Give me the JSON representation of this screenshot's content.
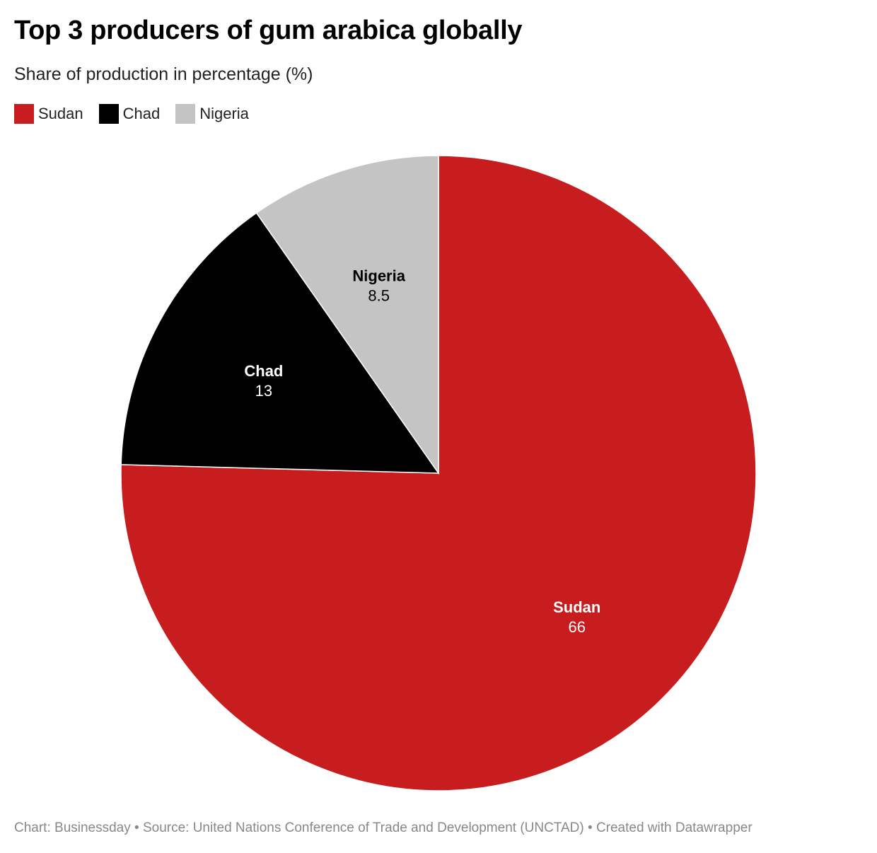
{
  "header": {
    "title": "Top 3 producers of gum arabica globally",
    "subtitle": "Share of production in percentage (%)"
  },
  "footer": {
    "text": "Chart: Businessday • Source: United Nations Conference of Trade and Development (UNCTAD) • Created with Datawrapper"
  },
  "chart_data": {
    "type": "pie",
    "title": "Top 3 producers of gum arabica globally",
    "subtitle": "Share of production in percentage (%)",
    "legend_position": "top-left",
    "slices": [
      {
        "label": "Sudan",
        "value": 66,
        "display": "66",
        "color": "#c81d1e",
        "text_color": "#ffffff"
      },
      {
        "label": "Chad",
        "value": 13,
        "display": "13",
        "color": "#000000",
        "text_color": "#ffffff"
      },
      {
        "label": "Nigeria",
        "value": 8.5,
        "display": "8.5",
        "color": "#c4c4c4",
        "text_color": "#000000"
      }
    ]
  }
}
